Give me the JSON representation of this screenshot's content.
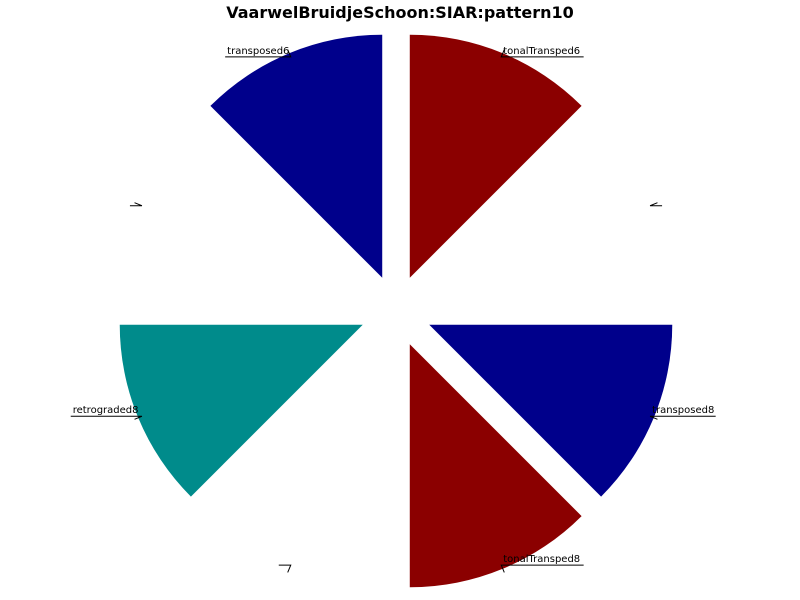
{
  "chart_data": {
    "type": "pie",
    "title": "VaarwelBruidjeSchoon:SIAR:pattern10",
    "start_angle_deg": 0,
    "direction": "counterclockwise",
    "exploded": true,
    "slices": [
      {
        "label": "",
        "value": 0,
        "color": "#ffffff"
      },
      {
        "label": "tonalTransped6",
        "value": 20,
        "color": "#8b0000"
      },
      {
        "label": "transposed6",
        "value": 20,
        "color": "#00008b"
      },
      {
        "label": "",
        "value": 0,
        "color": "#ffffff"
      },
      {
        "label": "retrograded8",
        "value": 20,
        "color": "#008b8b"
      },
      {
        "label": "",
        "value": 0,
        "color": "#ffffff"
      },
      {
        "label": "tonalTransped8",
        "value": 20,
        "color": "#8b0000"
      },
      {
        "label": "transposed8",
        "value": 20,
        "color": "#00008b"
      }
    ]
  }
}
